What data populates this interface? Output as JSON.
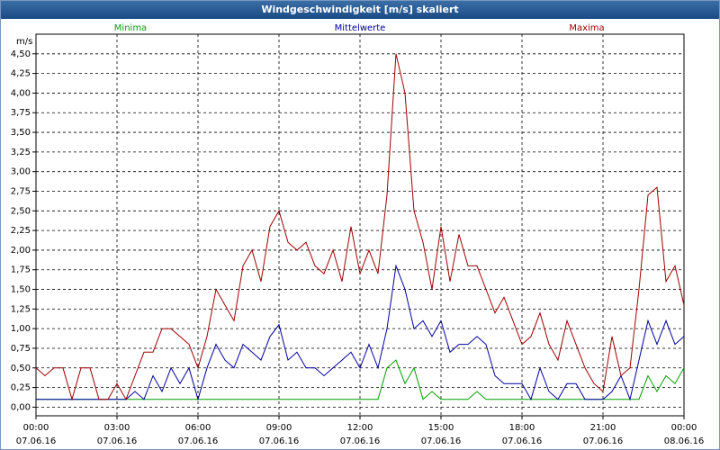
{
  "chart_data": {
    "type": "line",
    "title": "Windgeschwindigkeit [m/s] skaliert",
    "y_label": "m/s",
    "grid": true,
    "x": [
      0,
      20,
      40,
      60,
      80,
      100,
      120,
      140,
      160,
      180,
      200,
      220,
      240,
      260,
      280,
      300,
      320,
      340,
      360,
      380,
      400,
      420,
      440,
      460,
      480,
      500,
      520,
      540,
      560,
      580,
      600,
      620,
      640,
      660,
      680,
      700,
      720,
      740,
      760,
      780,
      800,
      820,
      840,
      860,
      880,
      900,
      920,
      940,
      960,
      980,
      1000,
      1020,
      1040,
      1060,
      1080,
      1100,
      1120,
      1140,
      1160,
      1180,
      1200,
      1220,
      1240,
      1260,
      1280,
      1300,
      1320,
      1340,
      1360,
      1380,
      1400,
      1420,
      1440
    ],
    "xlim": [
      0,
      1440
    ],
    "xticks": [
      {
        "value": 0,
        "label": "00:00",
        "date": "07.06.16"
      },
      {
        "value": 180,
        "label": "03:00",
        "date": "07.06.16"
      },
      {
        "value": 360,
        "label": "06:00",
        "date": "07.06.16"
      },
      {
        "value": 540,
        "label": "09:00",
        "date": "07.06.16"
      },
      {
        "value": 720,
        "label": "12:00",
        "date": "07.06.16"
      },
      {
        "value": 900,
        "label": "15:00",
        "date": "07.06.16"
      },
      {
        "value": 1080,
        "label": "18:00",
        "date": "07.06.16"
      },
      {
        "value": 1260,
        "label": "21:00",
        "date": "07.06.16"
      },
      {
        "value": 1440,
        "label": "00:00",
        "date": "08.06.16"
      }
    ],
    "ylim": [
      -0.11,
      4.75
    ],
    "yticks": [
      {
        "value": 0,
        "label": "0,00"
      },
      {
        "value": 0.25,
        "label": "0,25"
      },
      {
        "value": 0.5,
        "label": "0,50"
      },
      {
        "value": 0.75,
        "label": "0,75"
      },
      {
        "value": 1,
        "label": "1,00"
      },
      {
        "value": 1.25,
        "label": "1,25"
      },
      {
        "value": 1.5,
        "label": "1,50"
      },
      {
        "value": 1.75,
        "label": "1,75"
      },
      {
        "value": 2,
        "label": "2,00"
      },
      {
        "value": 2.25,
        "label": "2,25"
      },
      {
        "value": 2.5,
        "label": "2,50"
      },
      {
        "value": 2.75,
        "label": "2,75"
      },
      {
        "value": 3,
        "label": "3,00"
      },
      {
        "value": 3.25,
        "label": "3,25"
      },
      {
        "value": 3.5,
        "label": "3,50"
      },
      {
        "value": 3.75,
        "label": "3,75"
      },
      {
        "value": 4,
        "label": "4,00"
      },
      {
        "value": 4.25,
        "label": "4,25"
      },
      {
        "value": 4.5,
        "label": "4,50"
      }
    ],
    "series": [
      {
        "name": "Minima",
        "color": "#00a000",
        "legend_position": "left",
        "values": [
          0.1,
          0.1,
          0.1,
          0.1,
          0.1,
          0.1,
          0.1,
          0.1,
          0.1,
          0.1,
          0.1,
          0.1,
          0.1,
          0.1,
          0.1,
          0.1,
          0.1,
          0.1,
          0.1,
          0.1,
          0.1,
          0.1,
          0.1,
          0.1,
          0.1,
          0.1,
          0.1,
          0.1,
          0.1,
          0.1,
          0.1,
          0.1,
          0.1,
          0.1,
          0.1,
          0.1,
          0.1,
          0.1,
          0.1,
          0.5,
          0.6,
          0.3,
          0.5,
          0.1,
          0.2,
          0.1,
          0.1,
          0.1,
          0.1,
          0.2,
          0.1,
          0.1,
          0.1,
          0.1,
          0.1,
          0.1,
          0.1,
          0.1,
          0.1,
          0.1,
          0.1,
          0.1,
          0.1,
          0.1,
          0.1,
          0.1,
          0.1,
          0.1,
          0.4,
          0.2,
          0.4,
          0.3,
          0.5
        ]
      },
      {
        "name": "Mittelwerte",
        "color": "#0000a0",
        "legend_position": "center",
        "values": [
          0.1,
          0.1,
          0.1,
          0.1,
          0.1,
          0.1,
          0.1,
          0.1,
          0.1,
          0.1,
          0.1,
          0.2,
          0.1,
          0.4,
          0.2,
          0.5,
          0.3,
          0.5,
          0.1,
          0.5,
          0.8,
          0.6,
          0.5,
          0.8,
          0.7,
          0.6,
          0.9,
          1.05,
          0.6,
          0.7,
          0.5,
          0.5,
          0.4,
          0.5,
          0.6,
          0.7,
          0.5,
          0.8,
          0.5,
          1.0,
          1.8,
          1.5,
          1.0,
          1.1,
          0.9,
          1.1,
          0.7,
          0.8,
          0.8,
          0.9,
          0.8,
          0.4,
          0.3,
          0.3,
          0.3,
          0.1,
          0.5,
          0.2,
          0.1,
          0.3,
          0.3,
          0.1,
          0.1,
          0.1,
          0.2,
          0.4,
          0.1,
          0.6,
          1.1,
          0.8,
          1.1,
          0.8,
          0.9
        ]
      },
      {
        "name": "Maxima",
        "color": "#a00000",
        "legend_position": "right",
        "values": [
          0.5,
          0.4,
          0.5,
          0.5,
          0.1,
          0.5,
          0.5,
          0.1,
          0.1,
          0.3,
          0.1,
          0.4,
          0.7,
          0.7,
          1.0,
          1.0,
          0.9,
          0.8,
          0.5,
          0.9,
          1.5,
          1.3,
          1.1,
          1.8,
          2.0,
          1.6,
          2.3,
          2.5,
          2.1,
          2.0,
          2.1,
          1.8,
          1.7,
          2.0,
          1.6,
          2.3,
          1.7,
          2.0,
          1.7,
          2.7,
          4.5,
          4.0,
          2.5,
          2.1,
          1.5,
          2.3,
          1.6,
          2.2,
          1.8,
          1.8,
          1.5,
          1.2,
          1.4,
          1.1,
          0.8,
          0.9,
          1.2,
          0.8,
          0.6,
          1.1,
          0.8,
          0.5,
          0.3,
          0.2,
          0.9,
          0.4,
          0.5,
          1.5,
          2.7,
          2.8,
          1.6,
          1.8,
          1.3
        ]
      }
    ]
  }
}
